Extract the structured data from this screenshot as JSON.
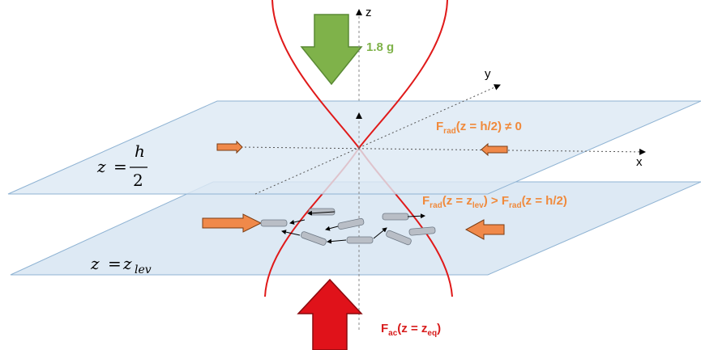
{
  "labels": {
    "gravity": "1.8 g",
    "axis_z": "z",
    "axis_y": "y",
    "axis_x": "x",
    "plane_top_eq": {
      "lhs": "z",
      "eq": "=",
      "num": "h",
      "den": "2"
    },
    "plane_bottom_eq": {
      "lhs": "z",
      "eq": "=",
      "base": "z",
      "sub": "lev"
    },
    "force_top": {
      "F": "F",
      "sub": "rad",
      "rest": "(z = h/2) ≠ 0"
    },
    "force_mid": {
      "F1": "F",
      "sub1": "rad",
      "rest1a": "(z = z",
      "sub1b": "lev",
      "rest1c": ") > ",
      "F2": "F",
      "sub2": "rad",
      "rest2": "(z = h/2)"
    },
    "force_bottom": {
      "F": "F",
      "sub": "ac",
      "rest1": "(z = z",
      "sub2": "eq",
      "rest2": ")"
    }
  },
  "colors": {
    "gravity_arrow": "#7fb24a",
    "gravity_text": "#7fb24a",
    "acoustic_arrow": "#e0121a",
    "force_text": "#f08a3c",
    "acoustic_text": "#d81e1e",
    "plane_fill": "#dde9f4",
    "plane_stroke": "#8fb3d3",
    "beam": "#e01a1a",
    "particle_arrow": "#f0894a",
    "rod": "#b9bec6"
  },
  "icons": [
    "down-arrow-icon",
    "up-arrow-icon",
    "block-arrow-icon"
  ]
}
